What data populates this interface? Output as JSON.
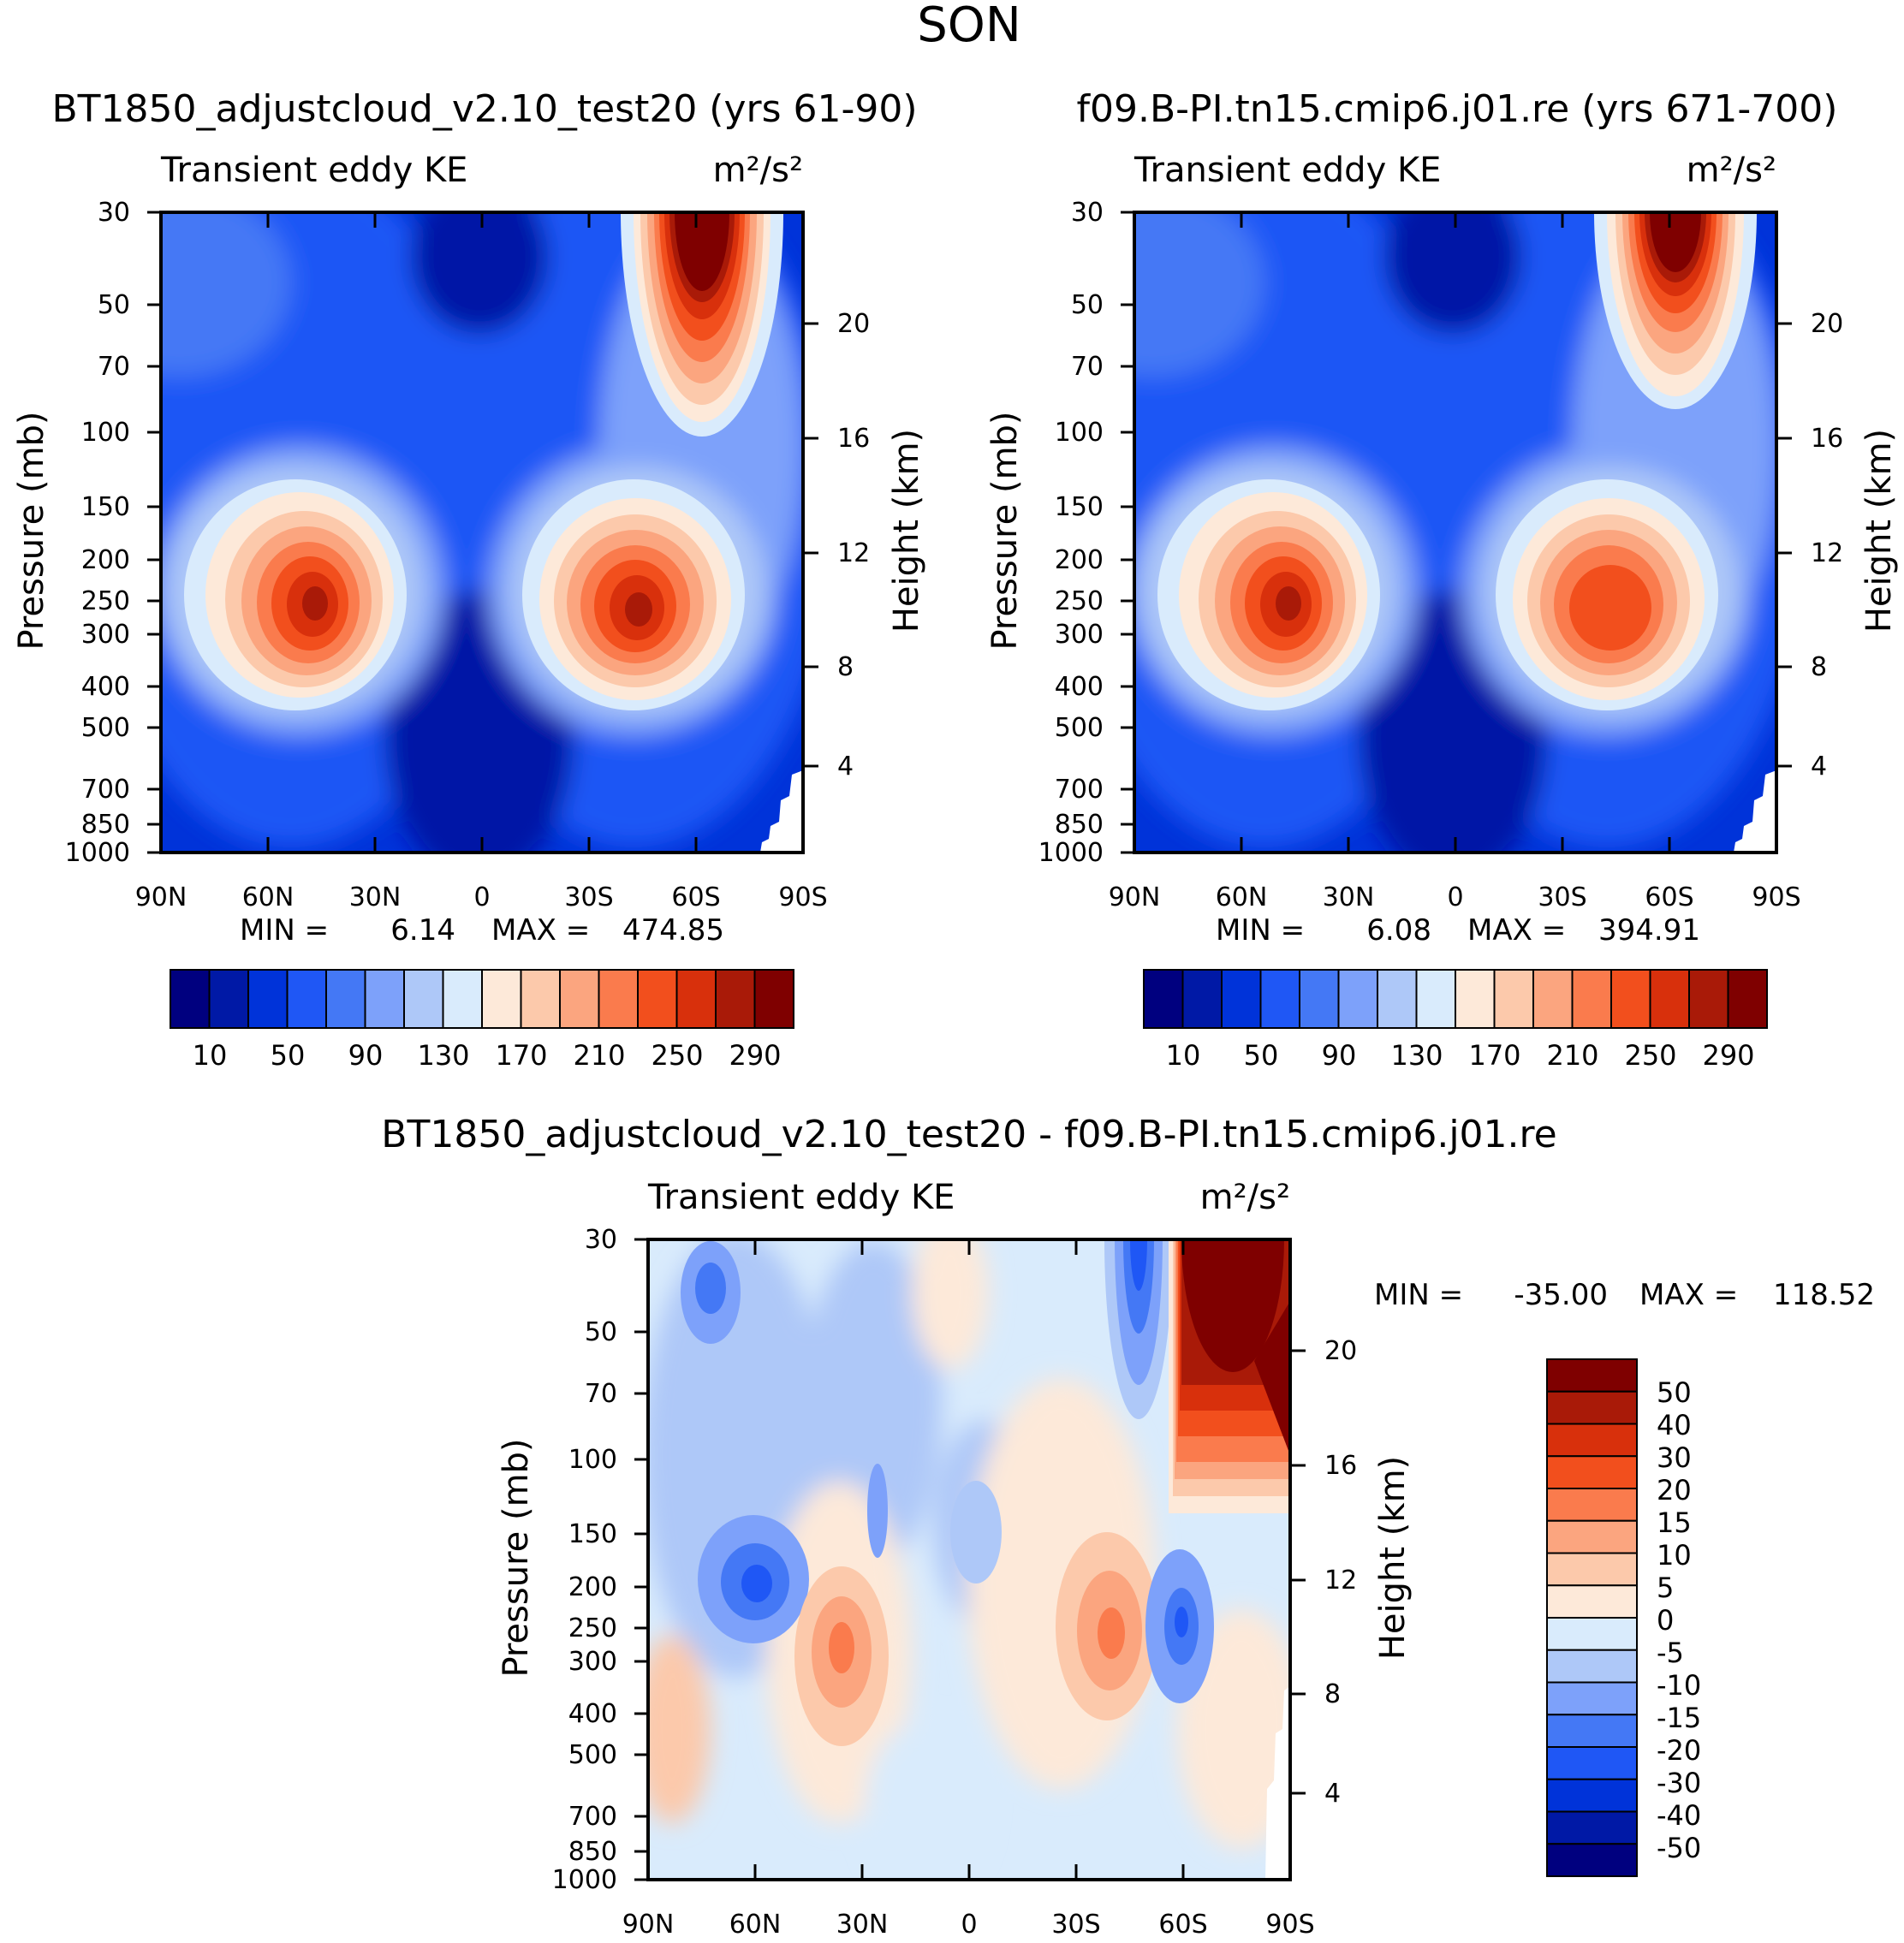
{
  "figure": {
    "title": "SON"
  },
  "palette": {
    "abs": [
      "#00007f",
      "#0019a6",
      "#0033d9",
      "#1f57f5",
      "#4478f5",
      "#7da1fa",
      "#aec8f8",
      "#d9ebfc",
      "#fde9d9",
      "#fcc9ab",
      "#fba57f",
      "#fa7b4d",
      "#f24f1d",
      "#d8300c",
      "#a91a08",
      "#7f0000"
    ],
    "diff": [
      "#00007f",
      "#0019a6",
      "#0033d9",
      "#1f57f5",
      "#4478f5",
      "#7da1fa",
      "#aec8f8",
      "#d9ebfc",
      "#fde9d9",
      "#fcc9ab",
      "#fba57f",
      "#fa7b4d",
      "#f24f1d",
      "#d8300c",
      "#a91a08",
      "#7f0000"
    ]
  },
  "chart_data": [
    {
      "id": "case",
      "type": "heatmap",
      "title": "BT1850_adjustcloud_v2.10_test20 (yrs 61-90)",
      "subtitle_left": "Transient eddy KE",
      "units": "m²/s²",
      "xlabel": "",
      "ylabel": "Pressure (mb)",
      "ylabel_right": "Height (km)",
      "x_ticks": [
        "90N",
        "60N",
        "30N",
        "0",
        "30S",
        "60S",
        "90S"
      ],
      "y_ticks": [
        "30",
        "50",
        "70",
        "100",
        "150",
        "200",
        "250",
        "300",
        "400",
        "500",
        "700",
        "850",
        "1000"
      ],
      "y_ticks_right": [
        "20",
        "16",
        "12",
        "8",
        "4"
      ],
      "min_label": "MIN =",
      "min_value": "6.14",
      "max_label": "MAX =",
      "max_value": "474.85",
      "colorbar_labels": [
        "10",
        "50",
        "90",
        "130",
        "170",
        "210",
        "250",
        "290"
      ],
      "colorbar_levels": [
        10,
        30,
        50,
        70,
        90,
        110,
        130,
        150,
        170,
        190,
        210,
        230,
        250,
        270,
        290
      ]
    },
    {
      "id": "control",
      "type": "heatmap",
      "title": "f09.B-PI.tn15.cmip6.j01.re (yrs 671-700)",
      "subtitle_left": "Transient eddy KE",
      "units": "m²/s²",
      "xlabel": "",
      "ylabel": "Pressure (mb)",
      "ylabel_right": "Height (km)",
      "x_ticks": [
        "90N",
        "60N",
        "30N",
        "0",
        "30S",
        "60S",
        "90S"
      ],
      "y_ticks": [
        "30",
        "50",
        "70",
        "100",
        "150",
        "200",
        "250",
        "300",
        "400",
        "500",
        "700",
        "850",
        "1000"
      ],
      "y_ticks_right": [
        "20",
        "16",
        "12",
        "8",
        "4"
      ],
      "min_label": "MIN =",
      "min_value": "6.08",
      "max_label": "MAX =",
      "max_value": "394.91",
      "colorbar_labels": [
        "10",
        "50",
        "90",
        "130",
        "170",
        "210",
        "250",
        "290"
      ],
      "colorbar_levels": [
        10,
        30,
        50,
        70,
        90,
        110,
        130,
        150,
        170,
        190,
        210,
        230,
        250,
        270,
        290
      ]
    },
    {
      "id": "diff",
      "type": "heatmap",
      "title": "BT1850_adjustcloud_v2.10_test20 - f09.B-PI.tn15.cmip6.j01.re",
      "subtitle_left": "Transient eddy KE",
      "units": "m²/s²",
      "xlabel": "",
      "ylabel": "Pressure (mb)",
      "ylabel_right": "Height (km)",
      "x_ticks": [
        "90N",
        "60N",
        "30N",
        "0",
        "30S",
        "60S",
        "90S"
      ],
      "y_ticks": [
        "30",
        "50",
        "70",
        "100",
        "150",
        "200",
        "250",
        "300",
        "400",
        "500",
        "700",
        "850",
        "1000"
      ],
      "y_ticks_right": [
        "20",
        "16",
        "12",
        "8",
        "4"
      ],
      "min_label": "MIN =",
      "min_value": "-35.00",
      "max_label": "MAX =",
      "max_value": "118.52",
      "colorbar_labels": [
        "50",
        "40",
        "30",
        "20",
        "15",
        "10",
        "5",
        "0",
        "-5",
        "-10",
        "-15",
        "-20",
        "-30",
        "-40",
        "-50"
      ],
      "colorbar_levels": [
        -50,
        -40,
        -30,
        -20,
        -15,
        -10,
        -5,
        0,
        5,
        10,
        15,
        20,
        30,
        40,
        50
      ]
    }
  ]
}
